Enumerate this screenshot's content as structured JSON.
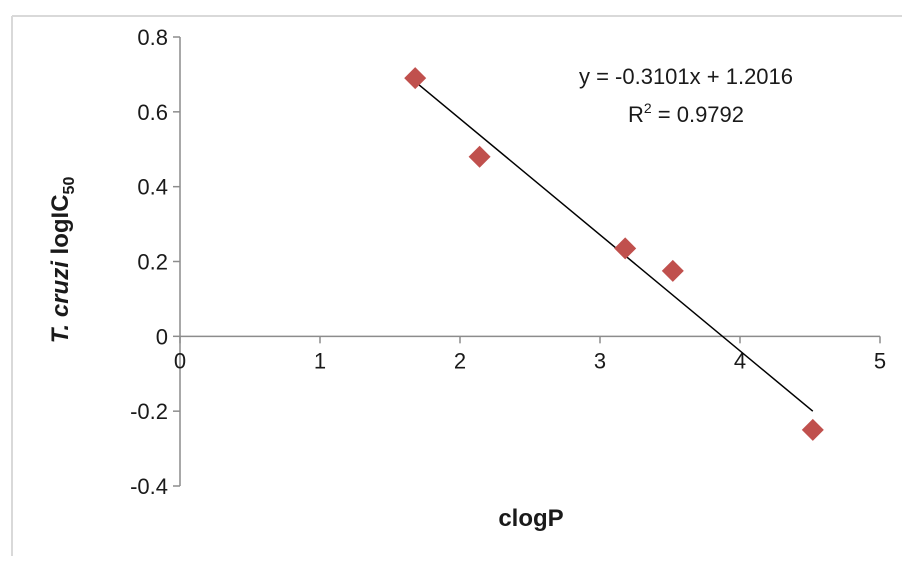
{
  "chart_data": {
    "type": "scatter",
    "x": [
      1.68,
      2.14,
      3.18,
      3.52,
      4.52
    ],
    "y": [
      0.69,
      0.48,
      0.235,
      0.175,
      -0.25
    ],
    "xlabel": "clogP",
    "ylabel": {
      "italic": "T. cruzi",
      "main": "logIC",
      "subscript": "50"
    },
    "xlim": [
      0,
      5
    ],
    "ylim": [
      -0.4,
      0.8
    ],
    "xticks": [
      "0",
      "1",
      "2",
      "3",
      "4",
      "5"
    ],
    "yticks": [
      "-0.4",
      "-0.2",
      "0",
      "0.2",
      "0.4",
      "0.6",
      "0.8"
    ],
    "trendline": {
      "slope": -0.3101,
      "intercept": 1.2016,
      "x_range": [
        1.68,
        4.52
      ],
      "equation": "y = -0.3101x + 1.2016",
      "r2_label": "R",
      "r2_sup": "2",
      "r2_value": " = 0.9792"
    },
    "grid": false,
    "legend": "none",
    "marker_color": "#c0504d",
    "line_color": "#000000"
  }
}
